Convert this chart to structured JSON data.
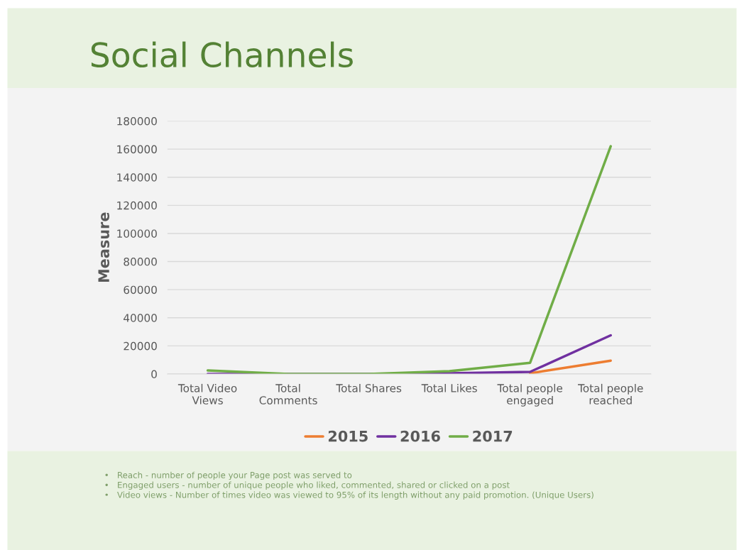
{
  "chart_data": {
    "type": "line",
    "title": "Social Channels",
    "ylabel": "Measure",
    "categories": [
      "Total Video\nViews",
      "Total\nComments",
      "Total Shares",
      "Total Likes",
      "Total people\nengaged",
      "Total people\nreached"
    ],
    "series": [
      {
        "name": "2015",
        "color": "#ed7d31",
        "values": [
          null,
          null,
          null,
          null,
          500,
          9500
        ]
      },
      {
        "name": "2016",
        "color": "#7030a0",
        "values": [
          0,
          0,
          0,
          500,
          1500,
          27500
        ]
      },
      {
        "name": "2017",
        "color": "#70ad47",
        "values": [
          2500,
          0,
          0,
          2000,
          8000,
          162000
        ]
      }
    ],
    "ylim": [
      0,
      180000
    ],
    "yticks": [
      0,
      20000,
      40000,
      60000,
      80000,
      100000,
      120000,
      140000,
      160000,
      180000
    ],
    "grid": "y",
    "legend": "bottom",
    "marker": "none",
    "line_style": "solid",
    "annotations": [
      "•   Reach - number of people your Page post was served to",
      "•   Engaged users - number of unique people who liked, commented, shared or clicked on a post",
      "•   Video views - Number of times video was viewed to 95% of its length without any paid promotion. (Unique Users)"
    ]
  }
}
